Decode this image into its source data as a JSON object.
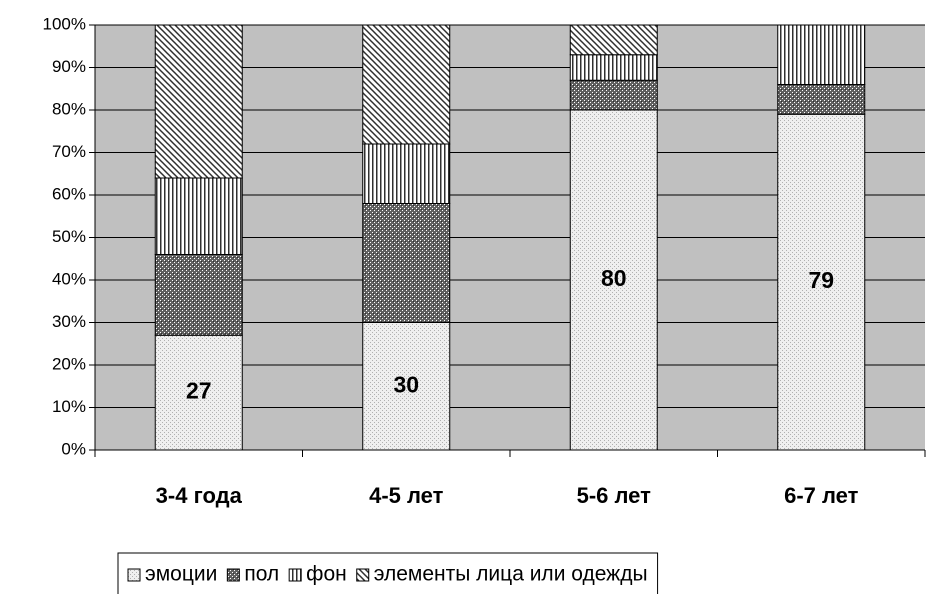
{
  "chart_data": {
    "type": "stacked_bar_percent",
    "categories": [
      "3-4 года",
      "4-5 лет",
      "5-6 лет",
      "6-7 лет"
    ],
    "series": [
      {
        "name": "эмоции",
        "color": "#808080",
        "pattern": "sparse-dots",
        "values": [
          27,
          30,
          80,
          79
        ],
        "show_labels": true
      },
      {
        "name": "пол",
        "color": "#303030",
        "pattern": "dense-dots",
        "values": [
          19,
          28,
          7,
          7
        ]
      },
      {
        "name": "фон",
        "color": "#303030",
        "pattern": "vertical",
        "values": [
          18,
          14,
          6,
          14
        ]
      },
      {
        "name": "элементы лица или одежды",
        "color": "#303030",
        "pattern": "diagonal",
        "values": [
          36,
          28,
          7,
          0
        ]
      }
    ],
    "ylim": [
      0,
      100
    ],
    "yticks": [
      {
        "value": 0,
        "label": "0%"
      },
      {
        "value": 10,
        "label": "10%"
      },
      {
        "value": 20,
        "label": "20%"
      },
      {
        "value": 30,
        "label": "30%"
      },
      {
        "value": 40,
        "label": "40%"
      },
      {
        "value": 50,
        "label": "50%"
      },
      {
        "value": 60,
        "label": "60%"
      },
      {
        "value": 70,
        "label": "70%"
      },
      {
        "value": 80,
        "label": "80%"
      },
      {
        "value": 90,
        "label": "90%"
      },
      {
        "value": 100,
        "label": "100%"
      }
    ],
    "grid": true,
    "plot_background": "#c0c0c0",
    "legend": "bottom"
  }
}
